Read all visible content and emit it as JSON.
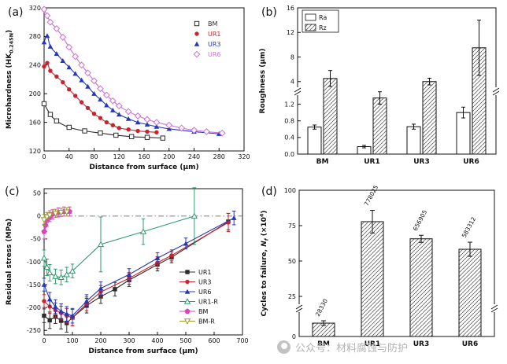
{
  "figure": {
    "background": "#ffffff",
    "panels": {
      "a_label": "(a)",
      "b_label": "(b)",
      "c_label": "(c)",
      "d_label": "(d)"
    },
    "watermark": {
      "text": "公众号：材料腐蚀与防护",
      "color": "#b3b3b3"
    }
  },
  "chart_data": [
    {
      "id": "a",
      "type": "line",
      "smooth": true,
      "xlabel": "Distance from surface (μm)",
      "ylabel": "Microhardness (HK0.245N)",
      "ylabel_parts": [
        {
          "t": "Microhardness (HK"
        },
        {
          "t": "0.245N",
          "sub": true
        },
        {
          "t": ")"
        }
      ],
      "xlim": [
        0,
        320
      ],
      "ylim": [
        120,
        320
      ],
      "xticks": [
        0,
        40,
        80,
        120,
        160,
        200,
        240,
        280,
        320
      ],
      "yticks": [
        120,
        160,
        200,
        240,
        280,
        320
      ],
      "legend_position": "top-right",
      "series": [
        {
          "name": "BM",
          "color": "#2b2b2b",
          "marker": "square-open",
          "x": [
            0,
            10,
            20,
            40,
            65,
            90,
            115,
            140,
            165,
            190
          ],
          "y": [
            186,
            171,
            162,
            153,
            148,
            145,
            142,
            140,
            139,
            138
          ]
        },
        {
          "name": "UR1",
          "color": "#c9232d",
          "marker": "circle",
          "x": [
            0,
            5,
            10,
            20,
            30,
            40,
            50,
            60,
            70,
            80,
            90,
            100,
            110,
            120,
            135,
            150,
            165,
            180
          ],
          "y": [
            238,
            243,
            232,
            224,
            216,
            206,
            197,
            188,
            180,
            172,
            166,
            160,
            156,
            152,
            150,
            148,
            147,
            146
          ]
        },
        {
          "name": "UR3",
          "color": "#2438b9",
          "marker": "triangle",
          "x": [
            0,
            5,
            10,
            20,
            30,
            40,
            50,
            60,
            70,
            80,
            90,
            100,
            110,
            120,
            135,
            150,
            165,
            180,
            200,
            240,
            280
          ],
          "y": [
            272,
            281,
            266,
            256,
            246,
            237,
            228,
            219,
            210,
            200,
            192,
            184,
            177,
            171,
            165,
            160,
            157,
            154,
            151,
            147,
            144
          ]
        },
        {
          "name": "UR6",
          "color": "#cf6fd6",
          "marker": "diamond-open",
          "x": [
            0,
            5,
            10,
            20,
            30,
            40,
            50,
            60,
            70,
            80,
            90,
            100,
            110,
            120,
            135,
            150,
            165,
            180,
            200,
            220,
            240,
            260,
            285
          ],
          "y": [
            318,
            309,
            300,
            291,
            279,
            265,
            252,
            240,
            229,
            218,
            207,
            198,
            190,
            183,
            175,
            169,
            164,
            160,
            156,
            152,
            149,
            147,
            145
          ]
        }
      ]
    },
    {
      "id": "b",
      "type": "bar",
      "ylabel": "Roughness (μm)",
      "ylabel_parts": [
        {
          "t": "Roughness (μm)"
        }
      ],
      "categories": [
        "BM",
        "UR1",
        "UR3",
        "UR6"
      ],
      "series": [
        {
          "name": "Ra",
          "style": "open",
          "values": [
            0.65,
            0.18,
            0.66,
            1.0
          ],
          "errors": [
            0.05,
            0.03,
            0.06,
            0.13
          ]
        },
        {
          "name": "Rz",
          "style": "hatch",
          "values": [
            4.5,
            1.35,
            4.0,
            9.5
          ],
          "errors": [
            1.3,
            0.15,
            0.55,
            4.5
          ]
        }
      ],
      "axis_break": true,
      "lower_domain": [
        0,
        1.4
      ],
      "upper_domain": [
        3.2,
        16
      ],
      "lower_ticks": [
        0,
        0.4,
        0.8,
        1.2
      ],
      "lower_tick_labels": [
        "0.0",
        "0.4",
        "0.8",
        "1.2"
      ],
      "upper_ticks": [
        4,
        8,
        12,
        16
      ],
      "upper_tick_labels": [
        "4",
        "8",
        "12",
        "16"
      ],
      "legend_position": "top-left"
    },
    {
      "id": "c",
      "type": "line",
      "smooth": false,
      "zero_line": true,
      "xlabel": "Distance from surface (μm)",
      "ylabel": "Residual stress (MPa)",
      "ylabel_parts": [
        {
          "t": "Residual stress (MPa)"
        }
      ],
      "xlim": [
        0,
        700
      ],
      "ylim": [
        -260,
        60
      ],
      "xticks": [
        0,
        100,
        200,
        300,
        400,
        500,
        600,
        700
      ],
      "yticks": [
        50,
        0,
        -50,
        -100,
        -150,
        -200,
        -250
      ],
      "legend_position": "right-center",
      "series": [
        {
          "name": "UR1",
          "color": "#2b2b2b",
          "marker": "square",
          "x": [
            0,
            20,
            40,
            60,
            80,
            100,
            150,
            200,
            250,
            300,
            400,
            450,
            650
          ],
          "y": [
            -218,
            -228,
            -220,
            -229,
            -234,
            -222,
            -196,
            -176,
            -160,
            -140,
            -106,
            -90,
            -12
          ],
          "err": [
            15,
            18,
            15,
            18,
            20,
            18,
            16,
            15,
            15,
            14,
            14,
            12,
            18
          ]
        },
        {
          "name": "UR3",
          "color": "#c9232d",
          "marker": "circle",
          "x": [
            0,
            20,
            40,
            60,
            80,
            100,
            150,
            200,
            300,
            400,
            450,
            650
          ],
          "y": [
            -186,
            -198,
            -206,
            -212,
            -218,
            -222,
            -192,
            -166,
            -136,
            -102,
            -86,
            -14
          ],
          "err": [
            14,
            15,
            16,
            15,
            16,
            18,
            15,
            14,
            13,
            13,
            12,
            20
          ]
        },
        {
          "name": "UR6",
          "color": "#2438b9",
          "marker": "triangle",
          "x": [
            0,
            20,
            40,
            60,
            80,
            100,
            150,
            200,
            300,
            400,
            500,
            670
          ],
          "y": [
            -150,
            -182,
            -198,
            -208,
            -214,
            -218,
            -186,
            -158,
            -128,
            -92,
            -60,
            -4
          ],
          "err": [
            14,
            15,
            15,
            16,
            16,
            16,
            14,
            14,
            13,
            12,
            12,
            15
          ]
        },
        {
          "name": "UR1-R",
          "color": "#2e9b6e",
          "marker": "triangle-open",
          "x": [
            0,
            10,
            20,
            40,
            60,
            80,
            100,
            200,
            350,
            530
          ],
          "y": [
            -92,
            -112,
            -124,
            -132,
            -134,
            -128,
            -120,
            -62,
            -34,
            0
          ],
          "err": [
            18,
            18,
            18,
            16,
            16,
            16,
            15,
            60,
            28,
            62
          ]
        },
        {
          "name": "BM",
          "color": "#dd3fc0",
          "marker": "pentagon",
          "x": [
            0,
            5,
            10,
            20,
            30,
            50,
            70,
            90
          ],
          "y": [
            -34,
            -20,
            -10,
            -2,
            4,
            8,
            10,
            10
          ],
          "err": [
            16,
            14,
            12,
            10,
            10,
            10,
            10,
            10
          ]
        },
        {
          "name": "BM-R",
          "color": "#9a9a33",
          "marker": "tridown-open",
          "x": [
            0,
            10,
            20,
            40,
            60,
            80
          ],
          "y": [
            -8,
            -2,
            2,
            6,
            8,
            9
          ],
          "err": [
            12,
            10,
            10,
            9,
            9,
            9
          ]
        }
      ]
    },
    {
      "id": "d",
      "type": "bar",
      "ylabel": "Cycles to failure, Nf (×10⁴)",
      "ylabel_parts": [
        {
          "t": "Cycles to failure, "
        },
        {
          "t": "N",
          "italic": true
        },
        {
          "t": "f",
          "sub": true,
          "italic": true
        },
        {
          "t": " (×10"
        },
        {
          "t": "4",
          "sup": true
        },
        {
          "t": ")"
        }
      ],
      "categories": [
        "BM",
        "UR1",
        "UR3",
        "UR6"
      ],
      "values": [
        2.83,
        77.8,
        65.7,
        58.3
      ],
      "errors": [
        0.5,
        8,
        2.5,
        5
      ],
      "bar_labels": [
        "28330",
        "778025",
        "656905",
        "583312"
      ],
      "axis_break": true,
      "lower_domain": [
        0,
        5
      ],
      "upper_domain": [
        20,
        100
      ],
      "lower_ticks": [
        0
      ],
      "lower_tick_labels": [
        "0"
      ],
      "upper_ticks": [
        25,
        50,
        75,
        100
      ],
      "upper_tick_labels": [
        "25",
        "50",
        "75",
        "100"
      ]
    }
  ]
}
